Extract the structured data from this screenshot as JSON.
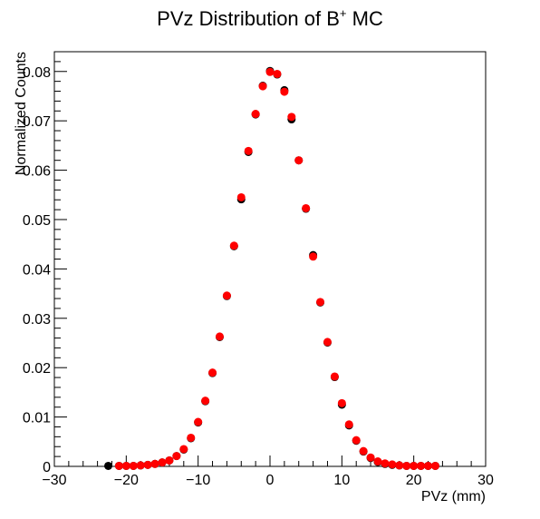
{
  "chart_data": {
    "type": "scatter",
    "title": "PVz Distribution of B",
    "title_superscript": "+",
    "title_suffix": " MC",
    "xlabel": "PVz (mm)",
    "ylabel": "Normalized Counts",
    "xlim": [
      -30,
      30
    ],
    "ylim": [
      0,
      0.084
    ],
    "x_ticks": [
      -30,
      -20,
      -10,
      0,
      10,
      20,
      30
    ],
    "x_tick_labels": [
      "−30",
      "−20",
      "−10",
      "0",
      "10",
      "20",
      "30"
    ],
    "y_ticks": [
      0,
      0.01,
      0.02,
      0.03,
      0.04,
      0.05,
      0.06,
      0.07,
      0.08
    ],
    "y_tick_labels": [
      "0",
      "0.01",
      "0.02",
      "0.03",
      "0.04",
      "0.05",
      "0.06",
      "0.07",
      "0.08"
    ],
    "grid": false,
    "series": [
      {
        "color": "#000000",
        "x": [
          -22.5,
          -21,
          -20,
          -19,
          -18,
          -17,
          -16,
          -15,
          -14,
          -13,
          -12,
          -11,
          -10,
          -9,
          -8,
          -7,
          -6,
          -5,
          -4,
          -3,
          -2,
          -1,
          0,
          1,
          2,
          3,
          4,
          5,
          6,
          7,
          8,
          9,
          10,
          11,
          12,
          13,
          14,
          15,
          16,
          17,
          18,
          19,
          20,
          21,
          22,
          23
        ],
        "y": [
          0.0001,
          0.0001,
          0.0001,
          0.0001,
          0.0002,
          0.0003,
          0.0005,
          0.0008,
          0.0012,
          0.0021,
          0.0034,
          0.0057,
          0.0089,
          0.0132,
          0.0189,
          0.0262,
          0.0345,
          0.0446,
          0.0541,
          0.0637,
          0.0713,
          0.0771,
          0.0801,
          0.0794,
          0.0762,
          0.0703,
          0.062,
          0.0522,
          0.0428,
          0.0332,
          0.0251,
          0.0181,
          0.0125,
          0.0083,
          0.0052,
          0.003,
          0.0017,
          0.0009,
          0.0005,
          0.0003,
          0.0002,
          0.0001,
          0.0001,
          0.0001,
          0.0001,
          0.0001
        ]
      },
      {
        "color": "#ff0000",
        "x": [
          -21,
          -20,
          -19,
          -18,
          -17,
          -16,
          -15,
          -14,
          -13,
          -12,
          -11,
          -10,
          -9,
          -8,
          -7,
          -6,
          -5,
          -4,
          -3,
          -2,
          -1,
          0,
          1,
          2,
          3,
          4,
          5,
          6,
          7,
          8,
          9,
          10,
          11,
          12,
          13,
          14,
          15,
          16,
          17,
          18,
          19,
          20,
          21,
          22,
          23
        ],
        "y": [
          0.0001,
          0.0001,
          0.0001,
          0.0002,
          0.0003,
          0.0005,
          0.0008,
          0.0012,
          0.0021,
          0.0035,
          0.0058,
          0.009,
          0.0133,
          0.019,
          0.0263,
          0.0346,
          0.0447,
          0.0545,
          0.0639,
          0.0714,
          0.077,
          0.0799,
          0.0795,
          0.0759,
          0.0708,
          0.062,
          0.0523,
          0.0425,
          0.0333,
          0.0252,
          0.0182,
          0.0128,
          0.0085,
          0.0053,
          0.0031,
          0.0018,
          0.001,
          0.0006,
          0.0004,
          0.0002,
          0.0001,
          0.0001,
          0.0001,
          0.0001,
          0.0001
        ]
      }
    ]
  }
}
